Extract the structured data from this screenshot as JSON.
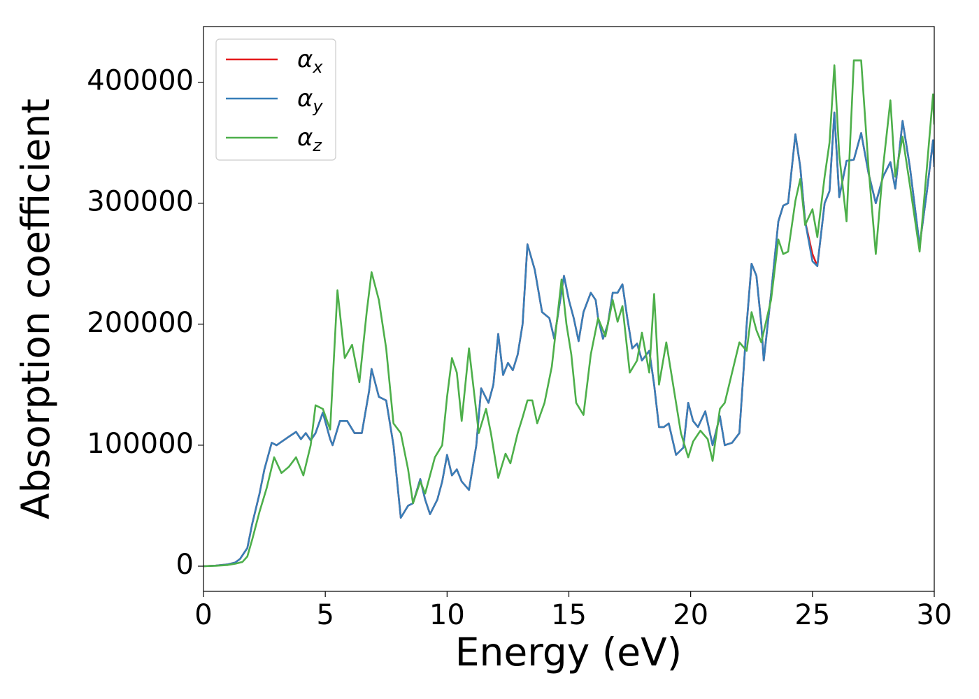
{
  "chart_data": {
    "type": "line",
    "xlabel": "Energy (eV)",
    "ylabel": "Absorption coefficient",
    "xlim": [
      0,
      30
    ],
    "ylim": [
      -20800,
      446000
    ],
    "xticks": [
      0,
      5,
      10,
      15,
      20,
      25,
      30
    ],
    "yticks": [
      0,
      100000,
      200000,
      300000,
      400000
    ],
    "grid": false,
    "legend": "upper left",
    "series": [
      {
        "name": "αx",
        "color": "#e41a1c",
        "x": [
          0,
          0.5,
          1,
          1.3,
          1.5,
          1.8,
          2,
          2.3,
          2.5,
          2.8,
          3,
          3.5,
          3.8,
          4,
          4.2,
          4.4,
          4.6,
          4.9,
          5.2,
          5.3,
          5.6,
          5.9,
          6.2,
          6.5,
          6.8,
          6.9,
          7.2,
          7.5,
          7.8,
          8.1,
          8.4,
          8.6,
          8.9,
          9.1,
          9.3,
          9.6,
          9.8,
          10,
          10.2,
          10.4,
          10.6,
          10.9,
          11.2,
          11.4,
          11.7,
          11.9,
          12.1,
          12.3,
          12.5,
          12.7,
          12.9,
          13.1,
          13.3,
          13.6,
          13.9,
          14.2,
          14.4,
          14.8,
          15,
          15.2,
          15.4,
          15.6,
          15.9,
          16.1,
          16.2,
          16.4,
          16.6,
          16.8,
          17,
          17.2,
          17.4,
          17.6,
          17.8,
          18,
          18.3,
          18.5,
          18.7,
          18.9,
          19.1,
          19.4,
          19.7,
          19.9,
          20.1,
          20.3,
          20.6,
          20.9,
          21.2,
          21.4,
          21.7,
          22,
          22.3,
          22.5,
          22.7,
          22.9,
          23,
          23.3,
          23.6,
          23.8,
          24,
          24.3,
          24.5,
          24.7,
          25,
          25.2,
          25.5,
          25.7,
          25.9,
          26.1,
          26.4,
          26.7,
          27,
          27.3,
          27.6,
          27.9,
          28.2,
          28.4,
          28.7,
          29,
          29.4,
          29.7,
          29.95,
          30
        ],
        "values": [
          0,
          500,
          1500,
          3000,
          6000,
          15000,
          35000,
          60000,
          80000,
          102000,
          100000,
          107000,
          111000,
          105000,
          110000,
          104000,
          110000,
          127000,
          105000,
          100000,
          120000,
          120000,
          110000,
          110000,
          145000,
          163000,
          140000,
          137000,
          100000,
          40000,
          50000,
          52000,
          72000,
          55000,
          43000,
          55000,
          70000,
          92000,
          75000,
          80000,
          70000,
          63000,
          100000,
          147000,
          135000,
          150000,
          192000,
          158000,
          168000,
          162000,
          175000,
          200000,
          266000,
          245000,
          210000,
          205000,
          188000,
          240000,
          220000,
          205000,
          186000,
          210000,
          226000,
          220000,
          205000,
          188000,
          200000,
          226000,
          226000,
          233000,
          205000,
          180000,
          184000,
          170000,
          178000,
          150000,
          115000,
          115000,
          118000,
          92000,
          98000,
          135000,
          120000,
          115000,
          128000,
          100000,
          124000,
          100000,
          102000,
          110000,
          200000,
          250000,
          240000,
          200000,
          170000,
          225000,
          285000,
          298000,
          300000,
          357000,
          330000,
          285000,
          258000,
          248000,
          300000,
          310000,
          375000,
          305000,
          335000,
          336000,
          358000,
          325000,
          300000,
          322000,
          334000,
          312000,
          368000,
          330000,
          265000,
          310000,
          352000,
          330000
        ]
      },
      {
        "name": "αy",
        "color": "#377eb8",
        "x": [
          0,
          0.5,
          1,
          1.3,
          1.5,
          1.8,
          2,
          2.3,
          2.5,
          2.8,
          3,
          3.5,
          3.8,
          4,
          4.2,
          4.4,
          4.6,
          4.9,
          5.2,
          5.3,
          5.6,
          5.9,
          6.2,
          6.5,
          6.8,
          6.9,
          7.2,
          7.5,
          7.8,
          8.1,
          8.4,
          8.6,
          8.9,
          9.1,
          9.3,
          9.6,
          9.8,
          10,
          10.2,
          10.4,
          10.6,
          10.9,
          11.2,
          11.4,
          11.7,
          11.9,
          12.1,
          12.3,
          12.5,
          12.7,
          12.9,
          13.1,
          13.3,
          13.6,
          13.9,
          14.2,
          14.4,
          14.8,
          15,
          15.2,
          15.4,
          15.6,
          15.9,
          16.1,
          16.2,
          16.4,
          16.6,
          16.8,
          17,
          17.2,
          17.4,
          17.6,
          17.8,
          18,
          18.3,
          18.5,
          18.7,
          18.9,
          19.1,
          19.4,
          19.7,
          19.9,
          20.1,
          20.3,
          20.6,
          20.9,
          21.2,
          21.4,
          21.7,
          22,
          22.3,
          22.5,
          22.7,
          22.9,
          23,
          23.3,
          23.6,
          23.8,
          24,
          24.3,
          24.5,
          24.7,
          25,
          25.2,
          25.5,
          25.7,
          25.9,
          26.1,
          26.4,
          26.7,
          27,
          27.3,
          27.6,
          27.9,
          28.2,
          28.4,
          28.7,
          29,
          29.4,
          29.7,
          29.95,
          30
        ],
        "values": [
          0,
          500,
          1500,
          3000,
          6000,
          15000,
          35000,
          60000,
          80000,
          102000,
          100000,
          107000,
          111000,
          105000,
          110000,
          104000,
          110000,
          127000,
          105000,
          100000,
          120000,
          120000,
          110000,
          110000,
          145000,
          163000,
          140000,
          137000,
          100000,
          40000,
          50000,
          52000,
          72000,
          55000,
          43000,
          55000,
          70000,
          92000,
          75000,
          80000,
          70000,
          63000,
          100000,
          147000,
          135000,
          150000,
          192000,
          158000,
          168000,
          162000,
          175000,
          200000,
          266000,
          245000,
          210000,
          205000,
          188000,
          240000,
          220000,
          205000,
          186000,
          210000,
          226000,
          220000,
          205000,
          188000,
          200000,
          226000,
          226000,
          233000,
          205000,
          180000,
          184000,
          170000,
          178000,
          150000,
          115000,
          115000,
          118000,
          92000,
          98000,
          135000,
          120000,
          115000,
          128000,
          100000,
          124000,
          100000,
          102000,
          110000,
          200000,
          250000,
          240000,
          200000,
          170000,
          225000,
          285000,
          298000,
          300000,
          357000,
          330000,
          285000,
          252000,
          248000,
          300000,
          310000,
          375000,
          305000,
          335000,
          336000,
          358000,
          325000,
          300000,
          322000,
          334000,
          312000,
          368000,
          330000,
          265000,
          310000,
          352000,
          330000
        ]
      },
      {
        "name": "αz",
        "color": "#4daf4a",
        "x": [
          0,
          0.5,
          1,
          1.3,
          1.6,
          1.8,
          2,
          2.3,
          2.6,
          2.9,
          3.2,
          3.5,
          3.8,
          4.1,
          4.4,
          4.6,
          4.9,
          5.2,
          5.5,
          5.8,
          6.1,
          6.4,
          6.7,
          6.9,
          7.2,
          7.5,
          7.8,
          8.1,
          8.4,
          8.6,
          8.9,
          9.1,
          9.5,
          9.8,
          10,
          10.2,
          10.4,
          10.6,
          10.9,
          11.1,
          11.3,
          11.6,
          11.8,
          12.1,
          12.4,
          12.6,
          12.9,
          13.1,
          13.3,
          13.5,
          13.7,
          14,
          14.3,
          14.7,
          14.9,
          15.1,
          15.3,
          15.6,
          15.9,
          16.2,
          16.5,
          16.8,
          17,
          17.2,
          17.5,
          17.8,
          18,
          18.3,
          18.5,
          18.7,
          19,
          19.2,
          19.6,
          19.9,
          20.1,
          20.4,
          20.7,
          20.9,
          21.2,
          21.4,
          21.7,
          22,
          22.3,
          22.5,
          22.7,
          22.9,
          23.3,
          23.6,
          23.8,
          24,
          24.3,
          24.5,
          24.7,
          25,
          25.2,
          25.5,
          25.7,
          25.9,
          26.1,
          26.4,
          26.7,
          27,
          27.3,
          27.6,
          27.9,
          28.2,
          28.4,
          28.7,
          29,
          29.4,
          29.7,
          29.95,
          30
        ],
        "values": [
          0,
          300,
          1000,
          2000,
          3500,
          8000,
          22000,
          45000,
          65000,
          90000,
          77000,
          82000,
          90000,
          75000,
          100000,
          133000,
          130000,
          113000,
          228000,
          172000,
          183000,
          152000,
          210000,
          243000,
          220000,
          180000,
          118000,
          110000,
          80000,
          52000,
          70000,
          60000,
          90000,
          100000,
          140000,
          172000,
          160000,
          120000,
          180000,
          145000,
          110000,
          130000,
          110000,
          73000,
          93000,
          85000,
          110000,
          123000,
          137000,
          137000,
          118000,
          135000,
          165000,
          237000,
          200000,
          175000,
          135000,
          125000,
          175000,
          205000,
          190000,
          220000,
          202000,
          215000,
          160000,
          170000,
          193000,
          160000,
          225000,
          150000,
          185000,
          160000,
          110000,
          90000,
          103000,
          112000,
          105000,
          87000,
          130000,
          135000,
          160000,
          185000,
          178000,
          210000,
          195000,
          185000,
          220000,
          270000,
          258000,
          260000,
          302000,
          320000,
          282000,
          295000,
          272000,
          322000,
          350000,
          414000,
          340000,
          285000,
          418000,
          418000,
          330000,
          258000,
          330000,
          385000,
          322000,
          355000,
          315000,
          260000,
          330000,
          390000,
          365000
        ]
      }
    ]
  }
}
